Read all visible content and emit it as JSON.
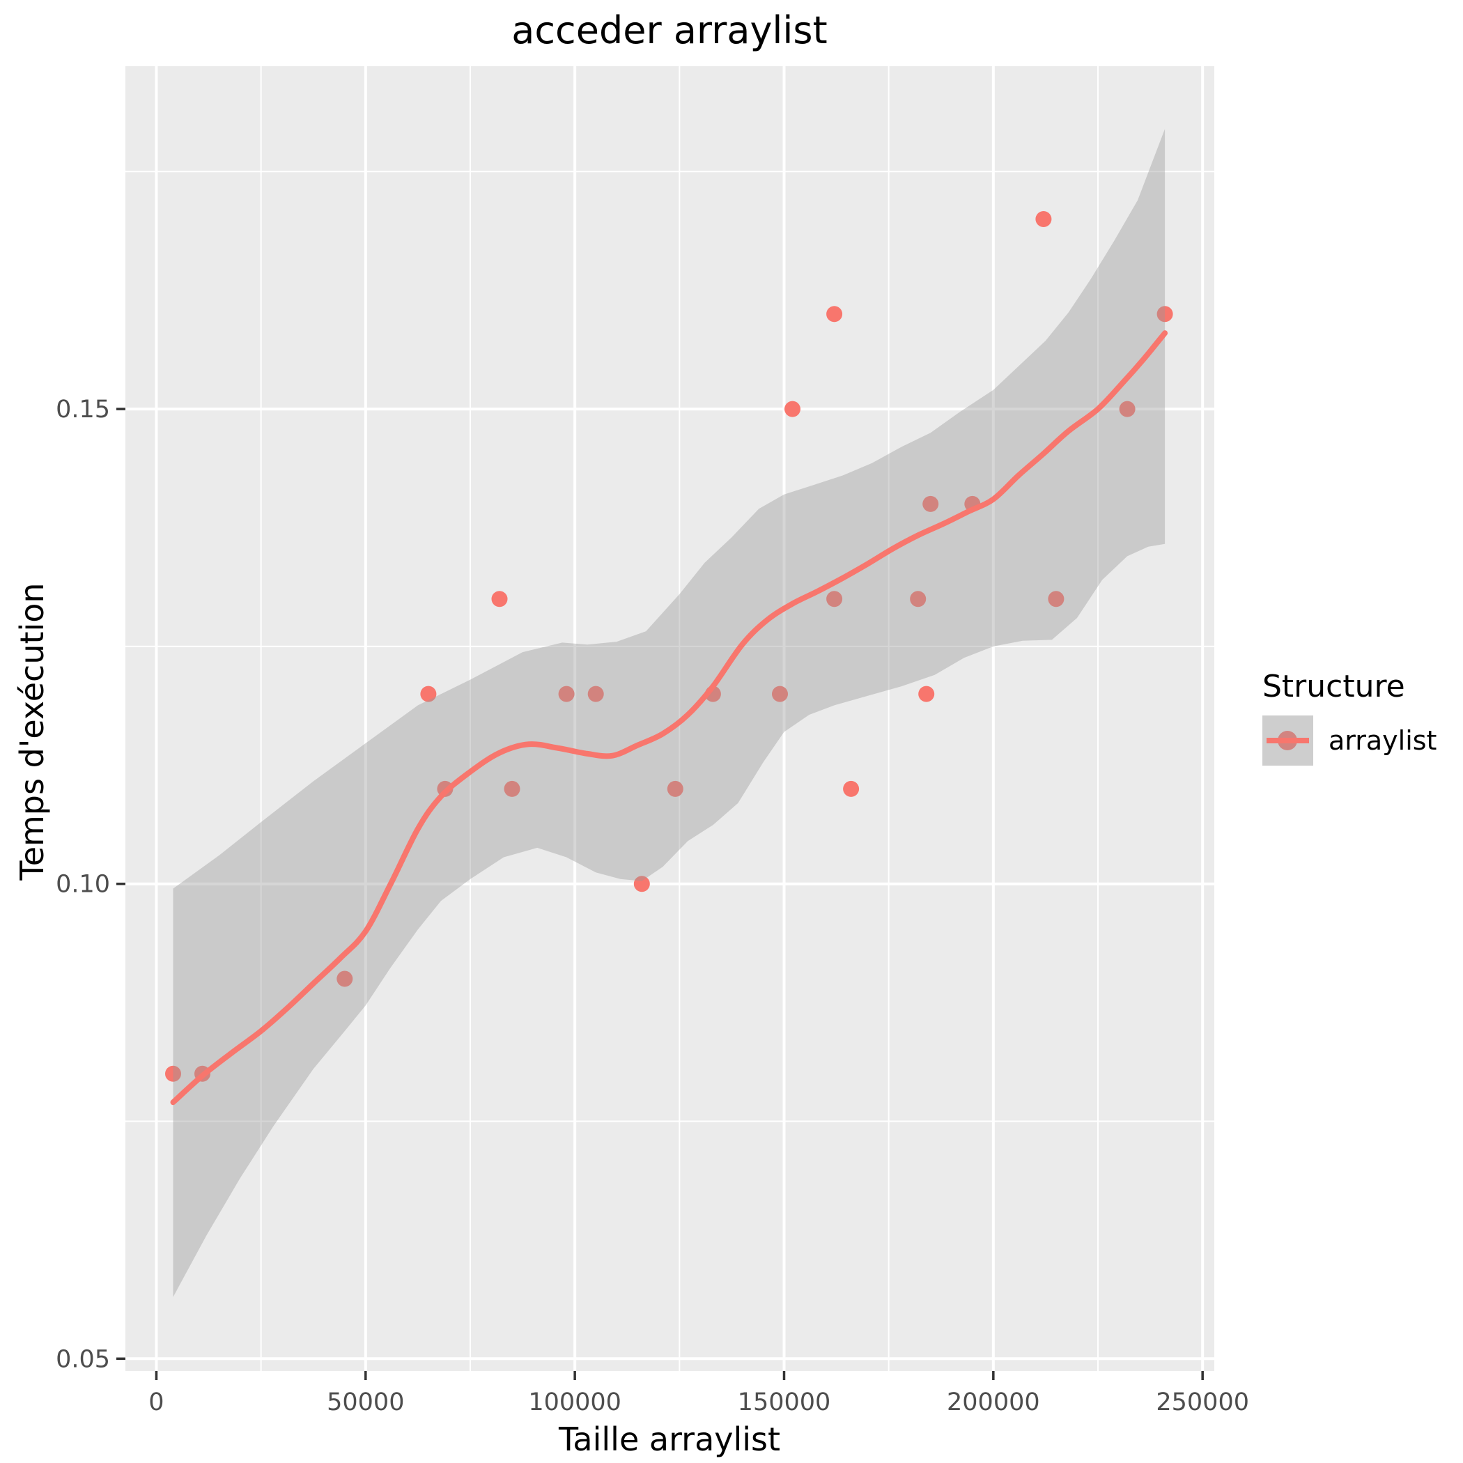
{
  "title": "acceder arraylist",
  "chart_data": {
    "type": "scatter",
    "title": "acceder arraylist",
    "xlabel": "Taille arraylist",
    "ylabel": "Temps d'exécution",
    "legend": {
      "title": "Structure",
      "entries": [
        {
          "label": "arraylist"
        }
      ],
      "position": "right"
    },
    "grid": true,
    "x_ticks": [
      0,
      50000,
      100000,
      150000,
      200000,
      250000
    ],
    "x_tick_labels": [
      "0",
      "50000",
      "100000",
      "150000",
      "200000",
      "250000"
    ],
    "x_minor_ticks": [
      25000,
      75000,
      125000,
      175000,
      225000
    ],
    "y_ticks": [
      0.05,
      0.1,
      0.15
    ],
    "y_tick_labels": [
      "0.05",
      "0.10",
      "0.15"
    ],
    "y_minor_ticks": [
      0.075,
      0.125,
      0.175
    ],
    "x_range": [
      -7400,
      252800
    ],
    "y_range": [
      0.0487,
      0.1861
    ],
    "series": [
      {
        "name": "arraylist",
        "points": [
          [
            4000,
            0.08
          ],
          [
            11000,
            0.08
          ],
          [
            45000,
            0.09
          ],
          [
            65000,
            0.12
          ],
          [
            69000,
            0.11
          ],
          [
            82000,
            0.13
          ],
          [
            85000,
            0.11
          ],
          [
            98000,
            0.12
          ],
          [
            105000,
            0.12
          ],
          [
            116000,
            0.1
          ],
          [
            124000,
            0.11
          ],
          [
            133000,
            0.12
          ],
          [
            149000,
            0.12
          ],
          [
            152000,
            0.15
          ],
          [
            162000,
            0.16
          ],
          [
            162000,
            0.13
          ],
          [
            166000,
            0.11
          ],
          [
            182000,
            0.13
          ],
          [
            184000,
            0.12
          ],
          [
            185000,
            0.14
          ],
          [
            195000,
            0.14
          ],
          [
            212000,
            0.17
          ],
          [
            215000,
            0.13
          ],
          [
            232000,
            0.15
          ],
          [
            241000,
            0.16
          ]
        ]
      }
    ],
    "smooth_line": [
      [
        4000,
        0.077
      ],
      [
        11000,
        0.0798
      ],
      [
        18000,
        0.0822
      ],
      [
        25000,
        0.0845
      ],
      [
        31000,
        0.0868
      ],
      [
        37500,
        0.0895
      ],
      [
        44000,
        0.0922
      ],
      [
        50000,
        0.095
      ],
      [
        56000,
        0.1
      ],
      [
        62500,
        0.1058
      ],
      [
        68000,
        0.1092
      ],
      [
        75000,
        0.1118
      ],
      [
        82000,
        0.1138
      ],
      [
        89000,
        0.1147
      ],
      [
        96000,
        0.1143
      ],
      [
        103000,
        0.1137
      ],
      [
        109000,
        0.1135
      ],
      [
        115000,
        0.1146
      ],
      [
        121000,
        0.1158
      ],
      [
        127000,
        0.1178
      ],
      [
        133000,
        0.1208
      ],
      [
        140000,
        0.1252
      ],
      [
        146000,
        0.1278
      ],
      [
        152000,
        0.1295
      ],
      [
        158000,
        0.1308
      ],
      [
        164000,
        0.1322
      ],
      [
        170000,
        0.1337
      ],
      [
        176000,
        0.1353
      ],
      [
        182000,
        0.1367
      ],
      [
        188000,
        0.1379
      ],
      [
        194000,
        0.1392
      ],
      [
        200000,
        0.1405
      ],
      [
        206000,
        0.143
      ],
      [
        212000,
        0.1453
      ],
      [
        218000,
        0.1477
      ],
      [
        225000,
        0.15
      ],
      [
        231000,
        0.1528
      ],
      [
        236000,
        0.1553
      ],
      [
        241000,
        0.158
      ]
    ],
    "ribbon_upper": [
      [
        4000,
        0.0995
      ],
      [
        15000,
        0.103
      ],
      [
        25000,
        0.1065
      ],
      [
        37500,
        0.1108
      ],
      [
        50000,
        0.1148
      ],
      [
        62500,
        0.1188
      ],
      [
        75000,
        0.1215
      ],
      [
        87500,
        0.1244
      ],
      [
        97000,
        0.1254
      ],
      [
        103000,
        0.1252
      ],
      [
        110000,
        0.1255
      ],
      [
        117000,
        0.1266
      ],
      [
        125000,
        0.1305
      ],
      [
        131000,
        0.1338
      ],
      [
        137500,
        0.1365
      ],
      [
        144000,
        0.1395
      ],
      [
        150000,
        0.141
      ],
      [
        157000,
        0.142
      ],
      [
        164000,
        0.143
      ],
      [
        171000,
        0.1443
      ],
      [
        178000,
        0.146
      ],
      [
        185000,
        0.1475
      ],
      [
        192000,
        0.1497
      ],
      [
        200000,
        0.152
      ],
      [
        206000,
        0.1545
      ],
      [
        212500,
        0.1572
      ],
      [
        218000,
        0.1602
      ],
      [
        223300,
        0.1637
      ],
      [
        229000,
        0.1678
      ],
      [
        234500,
        0.172
      ],
      [
        241000,
        0.1795
      ]
    ],
    "ribbon_lower": [
      [
        4000,
        0.0565
      ],
      [
        12000,
        0.063
      ],
      [
        20000,
        0.069
      ],
      [
        28000,
        0.0745
      ],
      [
        37500,
        0.0805
      ],
      [
        45000,
        0.0845
      ],
      [
        50000,
        0.0872
      ],
      [
        56000,
        0.0912
      ],
      [
        62500,
        0.0952
      ],
      [
        68000,
        0.0982
      ],
      [
        75000,
        0.1005
      ],
      [
        83000,
        0.1028
      ],
      [
        91000,
        0.1038
      ],
      [
        98000,
        0.1028
      ],
      [
        105000,
        0.1012
      ],
      [
        111000,
        0.1005
      ],
      [
        116000,
        0.1003
      ],
      [
        121000,
        0.1018
      ],
      [
        127000,
        0.1045
      ],
      [
        133000,
        0.1062
      ],
      [
        139000,
        0.1085
      ],
      [
        145000,
        0.1128
      ],
      [
        150000,
        0.116
      ],
      [
        156000,
        0.1178
      ],
      [
        162000,
        0.1188
      ],
      [
        170000,
        0.1198
      ],
      [
        178000,
        0.1208
      ],
      [
        186000,
        0.122
      ],
      [
        193000,
        0.1238
      ],
      [
        200000,
        0.125
      ],
      [
        207000,
        0.1256
      ],
      [
        214000,
        0.1257
      ],
      [
        220000,
        0.128
      ],
      [
        226000,
        0.132
      ],
      [
        232000,
        0.1345
      ],
      [
        237000,
        0.1355
      ],
      [
        241000,
        0.1358
      ]
    ],
    "colors": {
      "accent": "#F8766D",
      "point": "#F8766D",
      "line": "#F8766D",
      "ribbon": "#999999",
      "ribbon_alpha": 0.4,
      "panel_bg": "#EBEBEB",
      "grid": "#FFFFFF",
      "tick_text": "#4D4D4D",
      "tick_mark": "#333333",
      "legend_key_bg": "#CECECE",
      "muted_point": "#D28480"
    }
  }
}
